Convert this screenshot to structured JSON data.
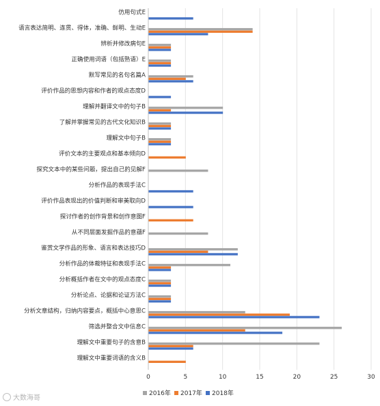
{
  "chart_data": {
    "type": "bar",
    "orientation": "horizontal",
    "categories": [
      "仿用句式E",
      "语言表达简明、连贯、得体，准确、鲜明、生动E",
      "辨析并修改病句E",
      "正确使用词语（包括熟语）E",
      "默写常见的名句名篇A",
      "评价作品的思想内容和作者的观点态度D",
      "理解并翻译文中的句子B",
      "了解并掌握常见的古代文化知识B",
      "理解文中句子B",
      "评价文本的主要观点和基本倾向D",
      "探究文本中的某些问题，提出自己的见解F",
      "分析作品的表现手法C",
      "评价作品表现出的价值判断和审美取向D",
      "探讨作者的创作背景和创作意图F",
      "从不同层面发掘作品的意蕴F",
      "鉴赏文学作品的形象、语言和表达技巧D",
      "分析作品的体裁特征和表现手法C",
      "分析概括作者在文中的观点态度C",
      "分析论点、论据和论证方法C",
      "分析文章结构，归纳内容要点，概括中心意思C",
      "筛选并整合文中信息C",
      "理解文中重要句子的含意B",
      "理解文中重要词语的含义B"
    ],
    "series": [
      {
        "name": "2016年",
        "color": "#a5a5a5",
        "values": [
          0,
          14,
          3,
          3,
          6,
          0,
          10,
          3,
          3,
          0,
          8,
          0,
          0,
          0,
          8,
          12,
          11,
          3,
          3,
          13,
          26,
          23,
          0
        ]
      },
      {
        "name": "2017年",
        "color": "#ed7d31",
        "values": [
          0,
          14,
          3,
          3,
          5,
          0,
          3,
          3,
          3,
          5,
          0,
          0,
          0,
          6,
          0,
          8,
          3,
          3,
          3,
          19,
          13,
          6,
          5
        ]
      },
      {
        "name": "2018年",
        "color": "#4472c4",
        "values": [
          6,
          8,
          3,
          3,
          6,
          3,
          10,
          3,
          3,
          0,
          0,
          6,
          6,
          0,
          0,
          12,
          3,
          3,
          3,
          23,
          18,
          6,
          0
        ]
      }
    ],
    "xlim": [
      0,
      30
    ],
    "xticks": [
      "0",
      "5",
      "10",
      "15",
      "20",
      "25",
      "30"
    ],
    "grid": true,
    "legend_position": "bottom"
  },
  "watermark": {
    "icon": "weibo-icon",
    "text": "大数海哥"
  }
}
